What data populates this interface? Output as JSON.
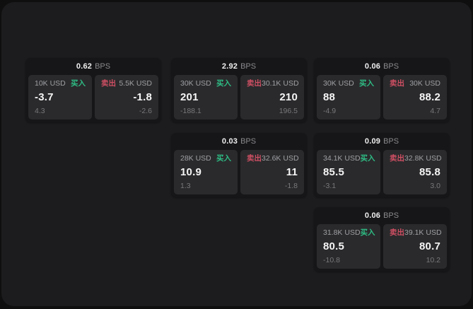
{
  "labels": {
    "bps": "BPS",
    "buy": "买入",
    "sell": "卖出"
  },
  "colors": {
    "background": "#0f0f10",
    "surface": "#1c1c1e",
    "card": "#161618",
    "panel": "#2a2a2c",
    "buy_green": "#2ebd85",
    "sell_red": "#ce4f63"
  },
  "cards": [
    {
      "bps": "0.62",
      "buy": {
        "amount": "10K USD",
        "price": "-3.7",
        "sub": "4.3"
      },
      "sell": {
        "amount": "5.5K USD",
        "price": "-1.8",
        "sub": "-2.6"
      }
    },
    {
      "bps": "2.92",
      "buy": {
        "amount": "30K USD",
        "price": "201",
        "sub": "-188.1"
      },
      "sell": {
        "amount": "30.1K USD",
        "price": "210",
        "sub": "196.5"
      }
    },
    {
      "bps": "0.06",
      "buy": {
        "amount": "30K USD",
        "price": "88",
        "sub": "-4.9"
      },
      "sell": {
        "amount": "30K USD",
        "price": "88.2",
        "sub": "4.7"
      }
    },
    {
      "bps": "0.03",
      "buy": {
        "amount": "28K USD",
        "price": "10.9",
        "sub": "1.3"
      },
      "sell": {
        "amount": "32.6K USD",
        "price": "11",
        "sub": "-1.8"
      }
    },
    {
      "bps": "0.09",
      "buy": {
        "amount": "34.1K USD",
        "price": "85.5",
        "sub": "-3.1"
      },
      "sell": {
        "amount": "32.8K USD",
        "price": "85.8",
        "sub": "3.0"
      }
    },
    {
      "bps": "0.06",
      "buy": {
        "amount": "31.8K USD",
        "price": "80.5",
        "sub": "-10.8"
      },
      "sell": {
        "amount": "39.1K USD",
        "price": "80.7",
        "sub": "10.2"
      }
    }
  ]
}
